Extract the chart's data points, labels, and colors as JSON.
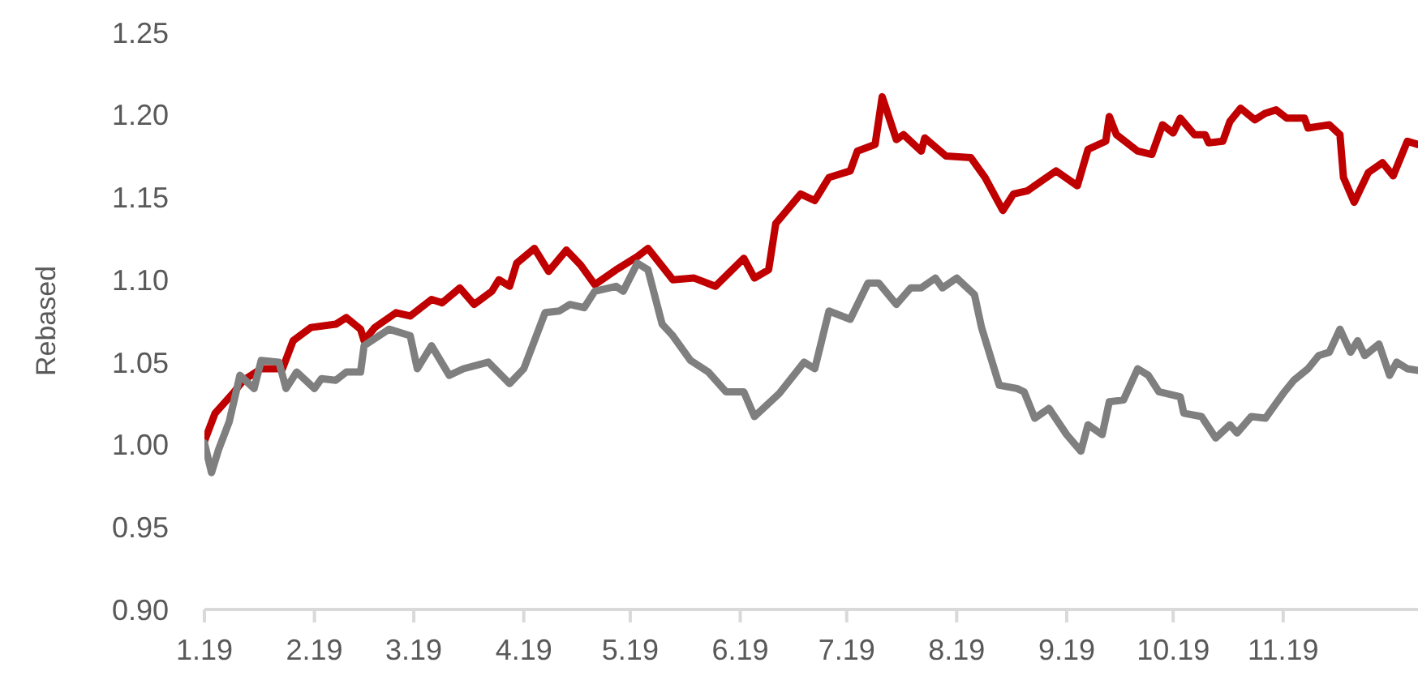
{
  "chart_data": {
    "type": "line",
    "ylabel": "Rebased",
    "xlim": [
      "2019-01-01",
      "2019-12-09"
    ],
    "xticks": [
      {
        "value": "2019-01-01",
        "label": "1.19"
      },
      {
        "value": "2019-02-01",
        "label": "2.19"
      },
      {
        "value": "2019-03-01",
        "label": "3.19"
      },
      {
        "value": "2019-04-01",
        "label": "4.19"
      },
      {
        "value": "2019-05-01",
        "label": "5.19"
      },
      {
        "value": "2019-06-01",
        "label": "6.19"
      },
      {
        "value": "2019-07-01",
        "label": "7.19"
      },
      {
        "value": "2019-08-01",
        "label": "8.19"
      },
      {
        "value": "2019-09-01",
        "label": "9.19"
      },
      {
        "value": "2019-10-01",
        "label": "10.19"
      },
      {
        "value": "2019-11-01",
        "label": "11.19"
      }
    ],
    "ylim": [
      0.9,
      1.25
    ],
    "yticks": [
      {
        "value": 0.9,
        "label": "0.90"
      },
      {
        "value": 0.95,
        "label": "0.95"
      },
      {
        "value": 1.0,
        "label": "1.00"
      },
      {
        "value": 1.05,
        "label": "1.05"
      },
      {
        "value": 1.1,
        "label": "1.10"
      },
      {
        "value": 1.15,
        "label": "1.15"
      },
      {
        "value": 1.2,
        "label": "1.20"
      },
      {
        "value": 1.25,
        "label": "1.25"
      }
    ],
    "grid": false,
    "marker": "none",
    "line_style": "solid",
    "series": [
      {
        "color": "#c00000",
        "x": [
          "2019-01-01",
          "2019-01-04",
          "2019-01-09",
          "2019-01-12",
          "2019-01-17",
          "2019-01-23",
          "2019-01-26",
          "2019-01-31",
          "2019-02-07",
          "2019-02-10",
          "2019-02-14",
          "2019-02-15",
          "2019-02-18",
          "2019-02-24",
          "2019-02-28",
          "2019-03-06",
          "2019-03-09",
          "2019-03-14",
          "2019-03-18",
          "2019-03-23",
          "2019-03-25",
          "2019-03-28",
          "2019-03-30",
          "2019-04-04",
          "2019-04-08",
          "2019-04-13",
          "2019-04-17",
          "2019-04-21",
          "2019-04-27",
          "2019-05-03",
          "2019-05-06",
          "2019-05-13",
          "2019-05-19",
          "2019-05-25",
          "2019-06-02",
          "2019-06-05",
          "2019-06-09",
          "2019-06-11",
          "2019-06-18",
          "2019-06-22",
          "2019-06-26",
          "2019-07-02",
          "2019-07-04",
          "2019-07-09",
          "2019-07-11",
          "2019-07-15",
          "2019-07-17",
          "2019-07-22",
          "2019-07-23",
          "2019-07-29",
          "2019-08-05",
          "2019-08-09",
          "2019-08-14",
          "2019-08-17",
          "2019-08-21",
          "2019-08-29",
          "2019-09-04",
          "2019-09-07",
          "2019-09-12",
          "2019-09-13",
          "2019-09-15",
          "2019-09-21",
          "2019-09-25",
          "2019-09-28",
          "2019-10-01",
          "2019-10-03",
          "2019-10-07",
          "2019-10-10",
          "2019-10-11",
          "2019-10-15",
          "2019-10-17",
          "2019-10-20",
          "2019-10-24",
          "2019-10-27",
          "2019-10-30",
          "2019-11-02",
          "2019-11-07",
          "2019-11-08",
          "2019-11-14",
          "2019-11-17",
          "2019-11-18",
          "2019-11-21",
          "2019-11-25",
          "2019-11-29",
          "2019-12-02",
          "2019-12-06",
          "2019-12-09"
        ],
        "values": [
          1.002,
          1.019,
          1.031,
          1.039,
          1.046,
          1.046,
          1.063,
          1.071,
          1.073,
          1.077,
          1.07,
          1.063,
          1.071,
          1.08,
          1.078,
          1.088,
          1.086,
          1.095,
          1.085,
          1.093,
          1.1,
          1.096,
          1.11,
          1.119,
          1.105,
          1.118,
          1.109,
          1.097,
          1.106,
          1.114,
          1.119,
          1.1,
          1.101,
          1.096,
          1.113,
          1.101,
          1.106,
          1.134,
          1.152,
          1.148,
          1.162,
          1.166,
          1.178,
          1.182,
          1.211,
          1.185,
          1.188,
          1.178,
          1.186,
          1.175,
          1.174,
          1.162,
          1.142,
          1.152,
          1.154,
          1.166,
          1.157,
          1.179,
          1.184,
          1.199,
          1.188,
          1.178,
          1.176,
          1.194,
          1.189,
          1.198,
          1.188,
          1.188,
          1.183,
          1.184,
          1.196,
          1.204,
          1.197,
          1.201,
          1.203,
          1.198,
          1.198,
          1.192,
          1.194,
          1.188,
          1.162,
          1.147,
          1.165,
          1.171,
          1.163,
          1.184,
          1.182
        ]
      },
      {
        "color": "#7f7f7f",
        "x": [
          "2019-01-01",
          "2019-01-03",
          "2019-01-05",
          "2019-01-08",
          "2019-01-11",
          "2019-01-15",
          "2019-01-17",
          "2019-01-22",
          "2019-01-24",
          "2019-01-27",
          "2019-02-01",
          "2019-02-03",
          "2019-02-07",
          "2019-02-10",
          "2019-02-14",
          "2019-02-15",
          "2019-02-22",
          "2019-02-28",
          "2019-03-02",
          "2019-03-06",
          "2019-03-11",
          "2019-03-15",
          "2019-03-22",
          "2019-03-28",
          "2019-04-01",
          "2019-04-07",
          "2019-04-11",
          "2019-04-14",
          "2019-04-18",
          "2019-04-21",
          "2019-04-27",
          "2019-04-29",
          "2019-05-03",
          "2019-05-06",
          "2019-05-10",
          "2019-05-13",
          "2019-05-18",
          "2019-05-23",
          "2019-05-28",
          "2019-06-02",
          "2019-06-05",
          "2019-06-12",
          "2019-06-19",
          "2019-06-22",
          "2019-06-26",
          "2019-07-02",
          "2019-07-07",
          "2019-07-10",
          "2019-07-15",
          "2019-07-19",
          "2019-07-22",
          "2019-07-26",
          "2019-07-28",
          "2019-08-01",
          "2019-08-06",
          "2019-08-08",
          "2019-08-13",
          "2019-08-18",
          "2019-08-20",
          "2019-08-23",
          "2019-08-27",
          "2019-09-01",
          "2019-09-05",
          "2019-09-07",
          "2019-09-11",
          "2019-09-13",
          "2019-09-17",
          "2019-09-21",
          "2019-09-24",
          "2019-09-27",
          "2019-10-03",
          "2019-10-04",
          "2019-10-09",
          "2019-10-13",
          "2019-10-17",
          "2019-10-19",
          "2019-10-23",
          "2019-10-27",
          "2019-11-01",
          "2019-11-04",
          "2019-11-08",
          "2019-11-11",
          "2019-11-14",
          "2019-11-17",
          "2019-11-20",
          "2019-11-22",
          "2019-11-24",
          "2019-11-28",
          "2019-12-01",
          "2019-12-03",
          "2019-12-06",
          "2019-12-09"
        ],
        "values": [
          1.001,
          0.983,
          0.997,
          1.014,
          1.042,
          1.034,
          1.051,
          1.05,
          1.034,
          1.044,
          1.034,
          1.04,
          1.039,
          1.044,
          1.044,
          1.06,
          1.07,
          1.066,
          1.046,
          1.06,
          1.042,
          1.046,
          1.05,
          1.037,
          1.046,
          1.08,
          1.081,
          1.085,
          1.083,
          1.093,
          1.096,
          1.093,
          1.11,
          1.106,
          1.073,
          1.066,
          1.051,
          1.044,
          1.032,
          1.032,
          1.017,
          1.031,
          1.05,
          1.046,
          1.081,
          1.076,
          1.098,
          1.098,
          1.085,
          1.095,
          1.095,
          1.101,
          1.095,
          1.101,
          1.091,
          1.071,
          1.036,
          1.034,
          1.032,
          1.016,
          1.022,
          1.006,
          0.996,
          1.012,
          1.006,
          1.026,
          1.027,
          1.046,
          1.042,
          1.032,
          1.029,
          1.019,
          1.017,
          1.004,
          1.012,
          1.007,
          1.017,
          1.016,
          1.031,
          1.039,
          1.046,
          1.054,
          1.056,
          1.07,
          1.056,
          1.063,
          1.054,
          1.061,
          1.042,
          1.05,
          1.046,
          1.045
        ]
      }
    ]
  }
}
